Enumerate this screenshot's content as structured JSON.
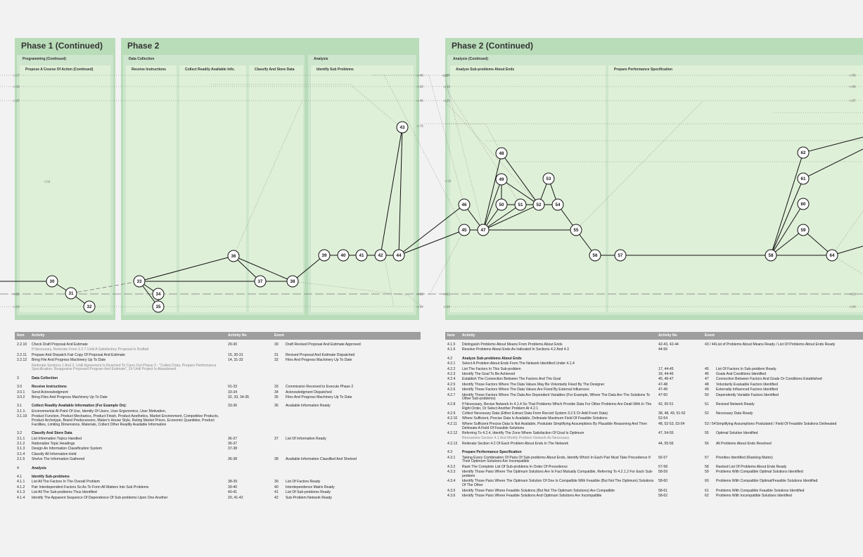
{
  "phases": [
    {
      "title": "Phase 1 (Continued)",
      "sub": "Programming (Continued)",
      "cols": [
        "Propose A Course Of Action (Continued)"
      ]
    },
    {
      "title": "Phase 2",
      "sub": "Data Collection",
      "cols": [
        "Receive Instructions",
        "Collect Readily Available Info.",
        "Classify And Store Data"
      ],
      "sub2": "Analysis",
      "cols2": [
        "Identify Sub Problems"
      ]
    },
    {
      "title": "Phase 2 (Continued)",
      "sub": "Analysis (Continued)",
      "cols": [
        "Analyze Sub-problems About Ends",
        "Prepare Performance Specification"
      ]
    }
  ],
  "side_labels": {
    "left": [
      "17",
      "19",
      "25",
      "22",
      "24",
      "11"
    ],
    "mid": [
      "45",
      "20",
      "46",
      "76",
      "20",
      "22",
      "24",
      "17",
      "19",
      "25",
      "11",
      "22",
      "24"
    ],
    "right": [
      "65",
      "66",
      "67",
      "22",
      "24"
    ]
  },
  "nodes": [
    "30",
    "31",
    "32",
    "33",
    "34",
    "35",
    "36",
    "37",
    "38",
    "39",
    "40",
    "41",
    "42",
    "43",
    "44",
    "45",
    "46",
    "47",
    "48",
    "49",
    "50",
    "51",
    "52",
    "53",
    "54",
    "55",
    "56",
    "57",
    "58",
    "59",
    "60",
    "61",
    "62",
    "64"
  ],
  "table_headers": {
    "item": "Item",
    "activity": "Activity",
    "activity_no": "Activity No",
    "event": "Event"
  },
  "left_rows": [
    {
      "item": "2.2.10",
      "activity": "Check Draft Proposal And Estimate",
      "no": "29-30",
      "ev_no": "30",
      "event": "Draft Revised Proposal And Estimate Approved"
    },
    {
      "item": "",
      "activity": "If Necessary, Reiterate From 2.2.7 Until A Satisfactory Proposal Is Drafted",
      "no": "",
      "ev_no": "",
      "event": "",
      "style": "note"
    },
    {
      "item": "2.2.11",
      "activity": "Prepare And Dispatch Fair Copy Of Proposal And Estimate",
      "no": "15, 30-31",
      "ev_no": "31",
      "event": "Revised Proposal And Estimate Dispatched"
    },
    {
      "item": "2.2.12",
      "activity": "Bring File And Progress Machinery Up To Date",
      "no": "14, 31-32",
      "ev_no": "32",
      "event": "Files And Progress Machinery Up To Date"
    },
    {
      "item": "",
      "activity": "Reiterate Sections 1 And 2, Until Agreement Is Reached To Carry Out Phase 2 - \"Collect Data, Prepare Performance Specification, Reappraise Proposed Program And Estimate\", Or Until Project Is Abandoned.",
      "no": "",
      "ev_no": "",
      "event": "",
      "style": "note"
    },
    {
      "item": "3",
      "activity": "Data Collection",
      "no": "",
      "ev_no": "",
      "event": "",
      "style": "sec"
    },
    {
      "item": "3.0",
      "activity": "Receive Instructions",
      "no": "01-33",
      "ev_no": "33",
      "event": "Commission Received to Execute Phase 2",
      "style": "sec"
    },
    {
      "item": "3.0.1",
      "activity": "Send Acknowledgment",
      "no": "33-34",
      "ev_no": "34",
      "event": "Acknowledgment Dispatched"
    },
    {
      "item": "3.0.2",
      "activity": "Bring Files And Progress Machinery Up To Date",
      "no": "32, 33, 34-35",
      "ev_no": "35",
      "event": "Files And Progress Machinery Up To Date"
    },
    {
      "item": "3.1",
      "activity": "Collect Readily Available Information (For Example On):",
      "no": "33-36",
      "ev_no": "36",
      "event": "Available Information Ready",
      "style": "sec"
    },
    {
      "item": "3.1.1-",
      "activity": "Environmental At Point Of Use, Identity Of Users, User Ergonomics, User Motivation,",
      "no": "",
      "ev_no": "",
      "event": ""
    },
    {
      "item": "3.1.19",
      "activity": "Product Function, Product Mechanics, Product Finish, Product Aesthetics, Market Environment, Competitive Products, Product Archetype, Brand Predecessors, Maker's House Style, Ruling Market Prices, Economic Quantities, Product Facilities, Limiting Dimensions, Materials, Collect Other Readily Available Information",
      "no": "",
      "ev_no": "",
      "event": ""
    },
    {
      "item": "3.2",
      "activity": "Classify And Store Data",
      "no": "",
      "ev_no": "",
      "event": "",
      "style": "sec"
    },
    {
      "item": "3.1.1",
      "activity": "List Information Topics Handled",
      "no": "36-37",
      "ev_no": "37",
      "event": "List Of Information Ready"
    },
    {
      "item": "3.1.2",
      "activity": "Rationalize Topic Headings",
      "no": "36-37",
      "ev_no": "",
      "event": ""
    },
    {
      "item": "3.1.3",
      "activity": "Design An Information Classification System",
      "no": "37-38",
      "ev_no": "",
      "event": ""
    },
    {
      "item": "3.1.4",
      "activity": "Classify All Information Held",
      "no": "",
      "ev_no": "",
      "event": ""
    },
    {
      "item": "3.1.5",
      "activity": "Shelve The Information Gathered",
      "no": "36-38",
      "ev_no": "38",
      "event": "Available Information Classified And Shelved"
    },
    {
      "item": "4",
      "activity": "Analysis",
      "no": "",
      "ev_no": "",
      "event": "",
      "style": "sec"
    },
    {
      "item": "4.1",
      "activity": "Identify Sub-problems",
      "no": "",
      "ev_no": "",
      "event": "",
      "style": "sec"
    },
    {
      "item": "4.1.1",
      "activity": "List All The Factors In The Overall Problem",
      "no": "38-39",
      "ev_no": "39",
      "event": "List Of Factors Ready"
    },
    {
      "item": "4.1.2",
      "activity": "Pair Interdependent Factors So As To Form All Matters Into Sub Problems",
      "no": "39-40",
      "ev_no": "40",
      "event": "Interdependence Matrix Ready"
    },
    {
      "item": "4.1.3",
      "activity": "List All The Sub-problems Thus Identified",
      "no": "40-41",
      "ev_no": "41",
      "event": "List Of Sub-problems Ready"
    },
    {
      "item": "4.1.4",
      "activity": "Identify The Apparent Sequence Of Dependence Of Sub-problems Upon One Another",
      "no": "20, 41-42",
      "ev_no": "42",
      "event": "Sub-Problem Network Ready"
    }
  ],
  "right_rows": [
    {
      "item": "4.1.5",
      "activity": "Distinguish Problems About Means From Problems About Ends",
      "no": "42-43, 42-44",
      "ev_no": "43 / 44",
      "event": "List of Problems About Means Ready / List Of Problems About Ends Ready"
    },
    {
      "item": "4.1.6",
      "activity": "Resolve Problems About Ends As Indicated In Sections 4.2 And 4.3",
      "no": "44-56",
      "ev_no": "",
      "event": ""
    },
    {
      "item": "4.2",
      "activity": "Analyze Sub-problems About Ends",
      "no": "",
      "ev_no": "",
      "event": "",
      "style": "sec"
    },
    {
      "item": "4.2.1",
      "activity": "Select A Problem About Ends From The Network Identified Under 4.1.4",
      "no": "",
      "ev_no": "",
      "event": ""
    },
    {
      "item": "4.2.2",
      "activity": "List The Factors In This Sub-problem",
      "no": "17, 44-45",
      "ev_no": "45",
      "event": "List Of Factors In Sub-problem Ready"
    },
    {
      "item": "4.2.3",
      "activity": "Identify The Goal To Be Achieved",
      "no": "18, 44-46",
      "ev_no": "46",
      "event": "Goals And Conditions Identified"
    },
    {
      "item": "4.2.4",
      "activity": "Establish The Connection Between The Factors And The Goal",
      "no": "45, 46-47",
      "ev_no": "47",
      "event": "Connection Between Factors And Goals Or Conditions Established"
    },
    {
      "item": "4.2.5",
      "activity": "Identify Those Factors Where The Data Values May Be Voluntarily Fixed By The Designer",
      "no": "47-48",
      "ev_no": "48",
      "event": "Voluntarily Evaluable Factors Identified"
    },
    {
      "item": "4.2.6",
      "activity": "Identify Those Factors Where The Data Values Are Fixed By External Influences",
      "no": "47-49",
      "ev_no": "49",
      "event": "Externally Influenced Factors Identified"
    },
    {
      "item": "4.2.7",
      "activity": "Identify Those Factors Where The Data Are Dependent Variables (For Example, Where The Data Are The Solutions To Other Sub-problems)",
      "no": "47-50",
      "ev_no": "50",
      "event": "Dependently Variable Factors Identified"
    },
    {
      "item": "4.2.8",
      "activity": "If Necessary, Revise Network In 4.1.4 So That Problems Which Provide Data For Other Problems Are Dealt With In The Right Order, Or Select Another Problem At 4.2.1",
      "no": "42, 50-51",
      "ev_no": "51",
      "event": "Revised Network Ready"
    },
    {
      "item": "4.2.9",
      "activity": "Collect Necessary Data (Either Extract Data From Record System 3.2.5 Or Add Fresh Data)",
      "no": "38, 48, 49, 51-52",
      "ev_no": "52",
      "event": "Necessary Data Ready"
    },
    {
      "item": "4.2.10",
      "activity": "Where Sufficient, Precise Data Is Available, Delineate Maximum Field Of Feasible Solutions",
      "no": "52-54",
      "ev_no": "",
      "event": ""
    },
    {
      "item": "4.2.11",
      "activity": "Where Sufficient Precise Data Is Not Available, Postulate Simplifying Assumptions By Plausible Reasoning And Then Delineate A Field Of Feasible Solutions",
      "no": "48, 52-53, 53-54",
      "ev_no": "53 / 54",
      "event": "Simplifying Assumptions Postulated / Field Of Feasible Solutions Delineated"
    },
    {
      "item": "4.2.12",
      "activity": "Referring To 4.2.4, Identify The Zone Where Satisfaction Of Goal Is Optimum",
      "no": "47, 54-55",
      "ev_no": "55",
      "event": "Optimal Solution Identified"
    },
    {
      "item": "",
      "activity": "Reexamine Section 4.1 And Modify Problem Network As Necessary",
      "no": "",
      "ev_no": "",
      "event": "",
      "style": "note"
    },
    {
      "item": "4.2.13",
      "activity": "Reiterate Section 4.2 Of Each Problem About Ends In The Network",
      "no": "44, 55-56",
      "ev_no": "56",
      "event": "All Problems About Ends Resolved"
    },
    {
      "item": "4.3",
      "activity": "Prepare Performance Specification",
      "no": "",
      "ev_no": "",
      "event": "",
      "style": "sec"
    },
    {
      "item": "4.3.1",
      "activity": "Taking Every Combination Of Pairs Of Sub-problems About Ends, Identify Which In Each Pair Must Take Precedence If Their Optimum Solutions Are Incompatible",
      "no": "56-57",
      "ev_no": "57",
      "event": "Priorities Identified (Ranking Matrix)"
    },
    {
      "item": "4.3.2",
      "activity": "Rank The Complete List Of Sub-problems In Order Of Precedence",
      "no": "57-58",
      "ev_no": "58",
      "event": "Ranked List Of Problems About Ends Ready"
    },
    {
      "item": "4.3.3",
      "activity": "Identify Those Pairs Where The Optimum Solutions Are In Fact Mutually Compatible, Referring To 4.2.1.2 For Each Sub-problem",
      "no": "58-59",
      "ev_no": "59",
      "event": "Problems With Compatible Optimal Solutions Identified"
    },
    {
      "item": "4.3.4",
      "activity": "Identify Those Pairs Where The Optimum Solution Of One Is Compatible With Feasible (But Not The Optimum) Solutions Of The Other",
      "no": "58-60",
      "ev_no": "60",
      "event": "Problems With Compatible Optimal/Feasible Solutions Identified"
    },
    {
      "item": "4.3.5",
      "activity": "Identify Those Pairs Where Feasible Solutions (But Not The Optimum Solutions) Are Compatible",
      "no": "58-61",
      "ev_no": "61",
      "event": "Problems With Compatible Feasible Solutions Identified"
    },
    {
      "item": "4.3.6",
      "activity": "Identify Those Pairs Where Feasible Solutions And Optimum Solutions Are Incompatible",
      "no": "58-62",
      "ev_no": "62",
      "event": "Problems With Incompatible Solutions Identified"
    }
  ]
}
